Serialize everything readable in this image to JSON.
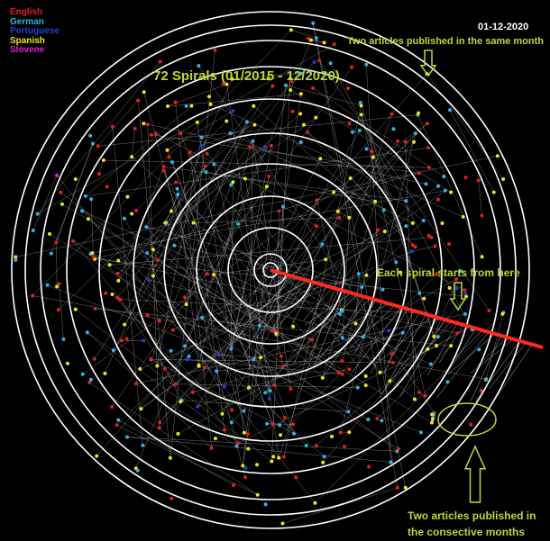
{
  "legend": [
    {
      "label": "English",
      "color": "#e0201f"
    },
    {
      "label": "German",
      "color": "#2fb4e9"
    },
    {
      "label": "Portuguese",
      "color": "#1e3fd8"
    },
    {
      "label": "Spanish",
      "color": "#f2e319"
    },
    {
      "label": "Slovene",
      "color": "#e51ad6"
    }
  ],
  "date_badge": "01-12-2020",
  "title": "72 Spirals (01/2015 - 12/2020)",
  "annotations": {
    "same_month": "Two articles published in the same month",
    "start": "Each spiral starts from here",
    "consecutive_line1": "Two articles published in",
    "consecutive_line2": "the consective months"
  },
  "colors": {
    "background": "#000000",
    "ring": "#ffffff",
    "start_line": "#ff2a1f",
    "annotation": "#b9d93a"
  }
}
